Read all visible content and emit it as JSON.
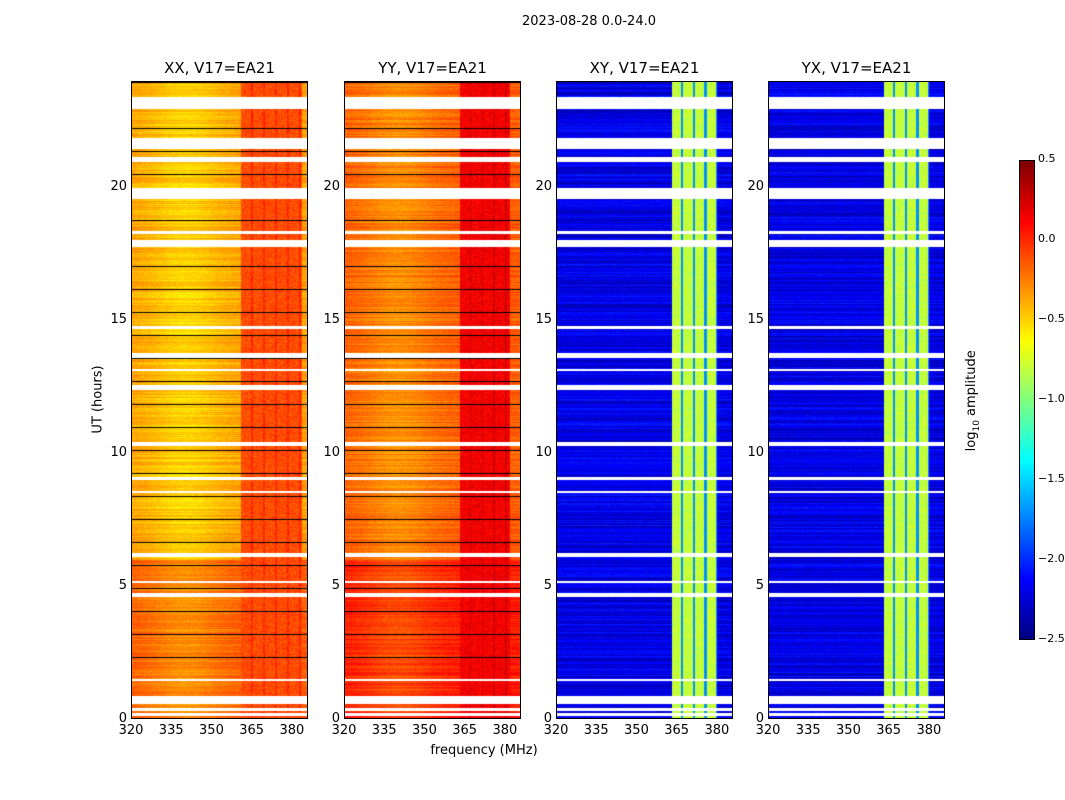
{
  "chart_data": {
    "type": "heatmap",
    "title": "2023-08-28 0.0-24.0",
    "xlabel": "frequency (MHz)",
    "ylabel": "UT (hours)",
    "xlim": [
      320,
      386
    ],
    "ylim": [
      0,
      24
    ],
    "xticks": [
      "320",
      "335",
      "350",
      "365",
      "380"
    ],
    "yticks": [
      "0",
      "5",
      "10",
      "15",
      "20"
    ],
    "colorbar": {
      "label": "log10 amplitude",
      "label_main": "log",
      "label_sub": "10",
      "label_rest": " amplitude",
      "range": [
        -2.5,
        0.5
      ],
      "ticks": [
        "0.5",
        "0.0",
        "−0.5",
        "−1.0",
        "−1.5",
        "−2.0",
        "−2.5"
      ],
      "colormap": "jet"
    },
    "flagged_hours": [
      [
        0.1,
        0.2
      ],
      [
        0.3,
        0.4
      ],
      [
        0.55,
        0.85
      ],
      [
        1.4,
        1.5
      ],
      [
        4.6,
        4.75
      ],
      [
        5.1,
        5.2
      ],
      [
        6.1,
        6.25
      ],
      [
        8.5,
        8.6
      ],
      [
        9.0,
        9.1
      ],
      [
        10.3,
        10.45
      ],
      [
        12.4,
        12.6
      ],
      [
        13.1,
        13.2
      ],
      [
        13.6,
        13.8
      ],
      [
        14.7,
        14.8
      ],
      [
        17.8,
        18.05
      ],
      [
        18.3,
        18.4
      ],
      [
        19.6,
        20.0
      ],
      [
        21.0,
        21.2
      ],
      [
        21.5,
        21.9
      ],
      [
        23.0,
        23.45
      ]
    ],
    "panels": [
      {
        "title": "XX, V17=EA21",
        "baseline": -0.35,
        "band": [
          361,
          384
        ],
        "band_level": -0.1,
        "subbands": false
      },
      {
        "title": "YY, V17=EA21",
        "baseline": -0.15,
        "band": [
          363,
          382
        ],
        "band_level": 0.15,
        "subbands": false
      },
      {
        "title": "XY, V17=EA21",
        "baseline": -2.2,
        "band": [
          363,
          380
        ],
        "band_level": -0.8,
        "subbands": true
      },
      {
        "title": "YX, V17=EA21",
        "baseline": -2.2,
        "band": [
          363,
          380
        ],
        "band_level": -0.8,
        "subbands": true
      }
    ]
  }
}
